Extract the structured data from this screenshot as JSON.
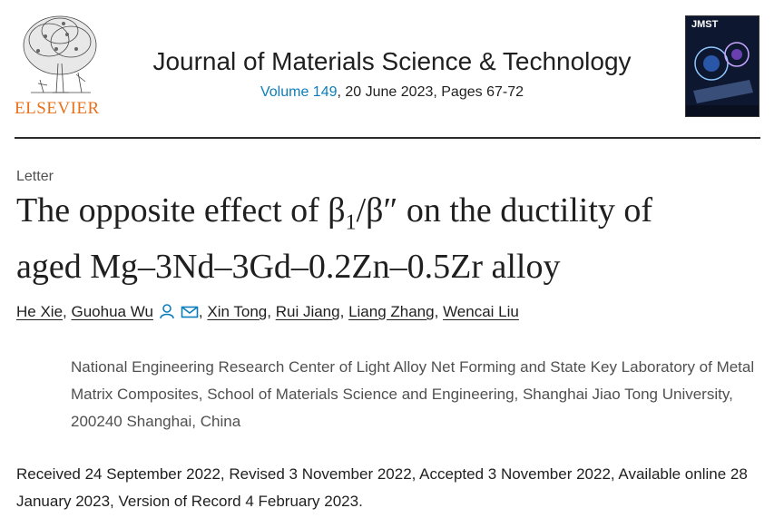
{
  "header": {
    "publisher": "ELSEVIER",
    "journal_title": "Journal of Materials Science & Technology",
    "volume": "Volume 149",
    "issue_rest": ", 20 June 2023, Pages 67-72",
    "cover_title": "JMST"
  },
  "article": {
    "type": "Letter",
    "title_line1_pre": "The opposite effect of β",
    "title_sub": "1",
    "title_line1_post": "/β″ on the ductility of",
    "title_line2": "aged Mg–3Nd–3Gd–0.2Zn–0.5Zr alloy",
    "authors": [
      "He Xie",
      "Guohua Wu",
      "Xin Tong",
      "Rui Jiang",
      "Liang Zhang",
      "Wencai Liu"
    ],
    "separator": ",",
    "affiliation": "National Engineering Research Center of Light Alloy Net Forming and State Key Laboratory of Metal Matrix Composites, School of Materials Science and Engineering, Shanghai Jiao Tong University, 200240 Shanghai, China",
    "dates": "Received 24 September 2022, Revised 3 November 2022, Accepted 3 November 2022, Available online 28 January 2023, Version of Record 4 February 2023."
  },
  "colors": {
    "publisher_orange": "#e9711c",
    "link_blue": "#0c7dbb",
    "text_dark": "#1f1f1f",
    "text_grey": "#505050"
  },
  "icons": [
    "elsevier-tree-logo",
    "journal-cover",
    "person-icon",
    "envelope-icon"
  ]
}
